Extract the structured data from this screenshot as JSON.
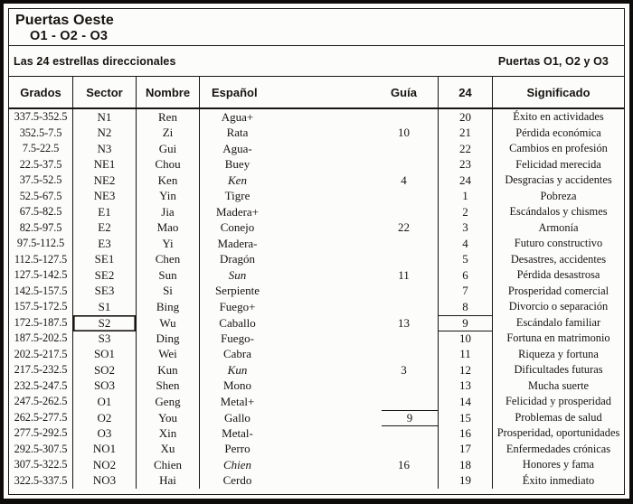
{
  "title_block": {
    "line1": "Puertas Oeste",
    "line2": "O1 - O2 - O3"
  },
  "band": {
    "left": "Las 24 estrellas direccionales",
    "right": "Puertas O1, O2 y O3"
  },
  "colors": {
    "ink": "#161310",
    "paper": "#fcfcfb",
    "border": "#181512"
  },
  "table": {
    "headers": {
      "grados": "Grados",
      "sector": "Sector",
      "nombre": "Nombre",
      "espanol": "Español",
      "guia": "Guía",
      "col24": "24",
      "significado": "Significado"
    },
    "rows": [
      {
        "grados": "337.5-352.5",
        "sector": "N1",
        "nombre": "Ren",
        "espanol": "Agua+",
        "espanol_italic": false,
        "guia": "",
        "n24": "20",
        "significado": "Éxito en actividades",
        "sector_box": false,
        "guia_box": false,
        "n24_box": false
      },
      {
        "grados": "352.5-7.5",
        "sector": "N2",
        "nombre": "Zi",
        "espanol": "Rata",
        "espanol_italic": false,
        "guia": "10",
        "n24": "21",
        "significado": "Pérdida económica",
        "sector_box": false,
        "guia_box": false,
        "n24_box": false
      },
      {
        "grados": "7.5-22.5",
        "sector": "N3",
        "nombre": "Gui",
        "espanol": "Agua-",
        "espanol_italic": false,
        "guia": "",
        "n24": "22",
        "significado": "Cambios en profesión",
        "sector_box": false,
        "guia_box": false,
        "n24_box": false
      },
      {
        "grados": "22.5-37.5",
        "sector": "NE1",
        "nombre": "Chou",
        "espanol": "Buey",
        "espanol_italic": false,
        "guia": "",
        "n24": "23",
        "significado": "Felicidad merecida",
        "sector_box": false,
        "guia_box": false,
        "n24_box": false
      },
      {
        "grados": "37.5-52.5",
        "sector": "NE2",
        "nombre": "Ken",
        "espanol": "Ken",
        "espanol_italic": true,
        "guia": "4",
        "n24": "24",
        "significado": "Desgracias y accidentes",
        "sector_box": false,
        "guia_box": false,
        "n24_box": false
      },
      {
        "grados": "52.5-67.5",
        "sector": "NE3",
        "nombre": "Yin",
        "espanol": "Tigre",
        "espanol_italic": false,
        "guia": "",
        "n24": "1",
        "significado": "Pobreza",
        "sector_box": false,
        "guia_box": false,
        "n24_box": false
      },
      {
        "grados": "67.5-82.5",
        "sector": "E1",
        "nombre": "Jia",
        "espanol": "Madera+",
        "espanol_italic": false,
        "guia": "",
        "n24": "2",
        "significado": "Escándalos y chismes",
        "sector_box": false,
        "guia_box": false,
        "n24_box": false
      },
      {
        "grados": "82.5-97.5",
        "sector": "E2",
        "nombre": "Mao",
        "espanol": "Conejo",
        "espanol_italic": false,
        "guia": "22",
        "n24": "3",
        "significado": "Armonía",
        "sector_box": false,
        "guia_box": false,
        "n24_box": false
      },
      {
        "grados": "97.5-112.5",
        "sector": "E3",
        "nombre": "Yi",
        "espanol": "Madera-",
        "espanol_italic": false,
        "guia": "",
        "n24": "4",
        "significado": "Futuro constructivo",
        "sector_box": false,
        "guia_box": false,
        "n24_box": false
      },
      {
        "grados": "112.5-127.5",
        "sector": "SE1",
        "nombre": "Chen",
        "espanol": "Dragón",
        "espanol_italic": false,
        "guia": "",
        "n24": "5",
        "significado": "Desastres, accidentes",
        "sector_box": false,
        "guia_box": false,
        "n24_box": false
      },
      {
        "grados": "127.5-142.5",
        "sector": "SE2",
        "nombre": "Sun",
        "espanol": "Sun",
        "espanol_italic": true,
        "guia": "11",
        "n24": "6",
        "significado": "Pérdida desastrosa",
        "sector_box": false,
        "guia_box": false,
        "n24_box": false
      },
      {
        "grados": "142.5-157.5",
        "sector": "SE3",
        "nombre": "Si",
        "espanol": "Serpiente",
        "espanol_italic": false,
        "guia": "",
        "n24": "7",
        "significado": "Prosperidad comercial",
        "sector_box": false,
        "guia_box": false,
        "n24_box": false
      },
      {
        "grados": "157.5-172.5",
        "sector": "S1",
        "nombre": "Bing",
        "espanol": "Fuego+",
        "espanol_italic": false,
        "guia": "",
        "n24": "8",
        "significado": "Divorcio o separación",
        "sector_box": false,
        "guia_box": false,
        "n24_box": false
      },
      {
        "grados": "172.5-187.5",
        "sector": "S2",
        "nombre": "Wu",
        "espanol": "Caballo",
        "espanol_italic": false,
        "guia": "13",
        "n24": "9",
        "significado": "Escándalo familiar",
        "sector_box": true,
        "guia_box": false,
        "n24_box": true
      },
      {
        "grados": "187.5-202.5",
        "sector": "S3",
        "nombre": "Ding",
        "espanol": "Fuego-",
        "espanol_italic": false,
        "guia": "",
        "n24": "10",
        "significado": "Fortuna en matrimonio",
        "sector_box": false,
        "guia_box": false,
        "n24_box": false
      },
      {
        "grados": "202.5-217.5",
        "sector": "SO1",
        "nombre": "Wei",
        "espanol": "Cabra",
        "espanol_italic": false,
        "guia": "",
        "n24": "11",
        "significado": "Riqueza y fortuna",
        "sector_box": false,
        "guia_box": false,
        "n24_box": false
      },
      {
        "grados": "217.5-232.5",
        "sector": "SO2",
        "nombre": "Kun",
        "espanol": "Kun",
        "espanol_italic": true,
        "guia": "3",
        "n24": "12",
        "significado": "Dificultades futuras",
        "sector_box": false,
        "guia_box": false,
        "n24_box": false
      },
      {
        "grados": "232.5-247.5",
        "sector": "SO3",
        "nombre": "Shen",
        "espanol": "Mono",
        "espanol_italic": false,
        "guia": "",
        "n24": "13",
        "significado": "Mucha suerte",
        "sector_box": false,
        "guia_box": false,
        "n24_box": false
      },
      {
        "grados": "247.5-262.5",
        "sector": "O1",
        "nombre": "Geng",
        "espanol": "Metal+",
        "espanol_italic": false,
        "guia": "",
        "n24": "14",
        "significado": "Felicidad y prosperidad",
        "sector_box": false,
        "guia_box": false,
        "n24_box": false
      },
      {
        "grados": "262.5-277.5",
        "sector": "O2",
        "nombre": "You",
        "espanol": "Gallo",
        "espanol_italic": false,
        "guia": "9",
        "n24": "15",
        "significado": "Problemas de salud",
        "sector_box": false,
        "guia_box": true,
        "n24_box": false
      },
      {
        "grados": "277.5-292.5",
        "sector": "O3",
        "nombre": "Xin",
        "espanol": "Metal-",
        "espanol_italic": false,
        "guia": "",
        "n24": "16",
        "significado": "Prosperidad, oportunidades",
        "sector_box": false,
        "guia_box": false,
        "n24_box": false
      },
      {
        "grados": "292.5-307.5",
        "sector": "NO1",
        "nombre": "Xu",
        "espanol": "Perro",
        "espanol_italic": false,
        "guia": "",
        "n24": "17",
        "significado": "Enfermedades crónicas",
        "sector_box": false,
        "guia_box": false,
        "n24_box": false
      },
      {
        "grados": "307.5-322.5",
        "sector": "NO2",
        "nombre": "Chien",
        "espanol": "Chien",
        "espanol_italic": true,
        "guia": "16",
        "n24": "18",
        "significado": "Honores y fama",
        "sector_box": false,
        "guia_box": false,
        "n24_box": false
      },
      {
        "grados": "322.5-337.5",
        "sector": "NO3",
        "nombre": "Hai",
        "espanol": "Cerdo",
        "espanol_italic": false,
        "guia": "",
        "n24": "19",
        "significado": "Éxito inmediato",
        "sector_box": false,
        "guia_box": false,
        "n24_box": false
      }
    ]
  }
}
